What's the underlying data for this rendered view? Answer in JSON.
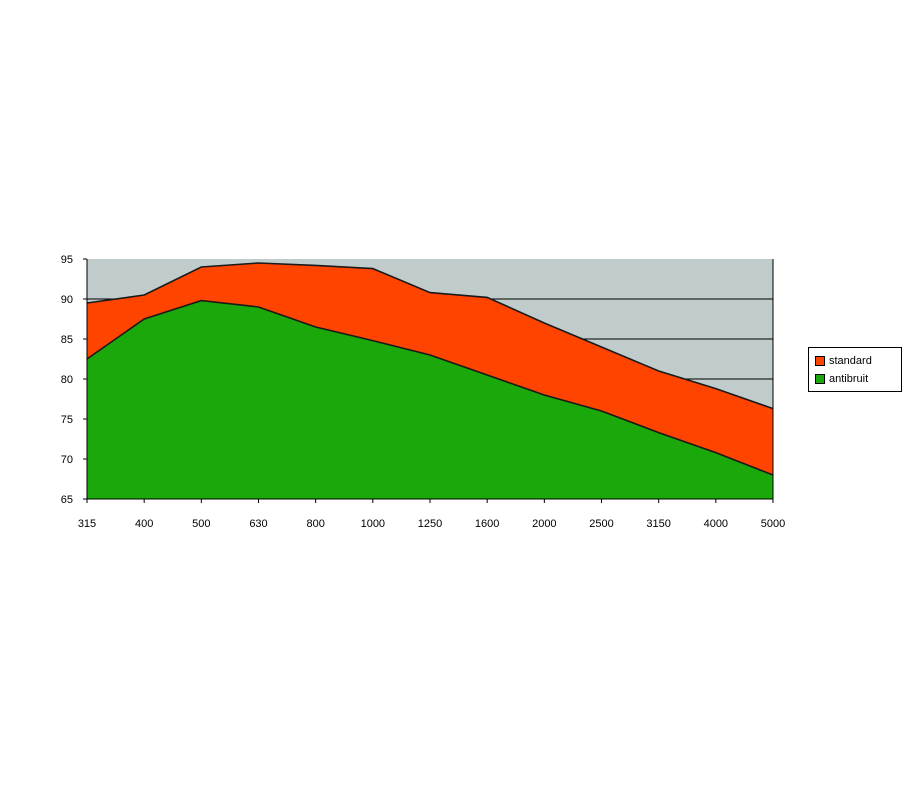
{
  "chart_data": {
    "type": "area",
    "stacked": false,
    "categories": [
      "315",
      "400",
      "500",
      "630",
      "800",
      "1000",
      "1250",
      "1600",
      "2000",
      "2500",
      "3150",
      "4000",
      "5000"
    ],
    "series": [
      {
        "name": "standard",
        "color": "#ff4400",
        "values": [
          89.5,
          90.5,
          94.0,
          94.5,
          94.2,
          93.8,
          90.8,
          90.2,
          87.0,
          84.0,
          81.0,
          78.8,
          76.3
        ]
      },
      {
        "name": "antibruit",
        "color": "#1aa80a",
        "values": [
          82.5,
          87.5,
          89.8,
          89.0,
          86.5,
          84.8,
          83.0,
          80.5,
          78.0,
          76.0,
          73.3,
          70.8,
          68.0
        ]
      }
    ],
    "ylim": [
      65,
      95
    ],
    "yticks": [
      "65",
      "70",
      "75",
      "80",
      "85",
      "90",
      "95"
    ],
    "grid": "horizontal",
    "plot_background": "#c0cccc",
    "legend": "right",
    "title": "",
    "xlabel": "",
    "ylabel": ""
  }
}
